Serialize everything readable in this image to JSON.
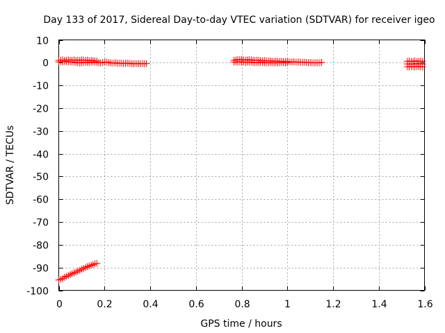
{
  "chart_data": {
    "type": "scatter",
    "title": "Day 133 of 2017, Sidereal Day-to-day VTEC variation (SDTVAR) for receiver igeo",
    "xlabel": "GPS time / hours",
    "ylabel": "SDTVAR / TECUs",
    "xlim": [
      0,
      1.6
    ],
    "ylim": [
      -100,
      10
    ],
    "xticks": [
      0,
      0.2,
      0.4,
      0.6,
      0.8,
      1,
      1.2,
      1.4,
      1.6
    ],
    "xtick_labels": [
      "0",
      "0.2",
      "0.4",
      "0.6",
      "0.8",
      "1",
      "1.2",
      "1.4",
      "1.6"
    ],
    "yticks": [
      10,
      0,
      -10,
      -20,
      -30,
      -40,
      -50,
      -60,
      -70,
      -80,
      -90,
      -100
    ],
    "ytick_labels": [
      "10",
      "0",
      "-10",
      "-20",
      "-30",
      "-40",
      "-50",
      "-60",
      "-70",
      "-80",
      "-90",
      "-100"
    ],
    "grid": true,
    "marker": "plus",
    "marker_color": "#ff0000",
    "series": [
      {
        "x": [
          0.0,
          0.008,
          0.017,
          0.025,
          0.033,
          0.042,
          0.05,
          0.058,
          0.067,
          0.075,
          0.083,
          0.092,
          0.1,
          0.108,
          0.117,
          0.125,
          0.133,
          0.142,
          0.15,
          0.158,
          0.167,
          0.175,
          0.183,
          0.192,
          0.2,
          0.208,
          0.217,
          0.225,
          0.233,
          0.242,
          0.25,
          0.258,
          0.267,
          0.275,
          0.283,
          0.292,
          0.3,
          0.308,
          0.317,
          0.325,
          0.333,
          0.342,
          0.35,
          0.358,
          0.367,
          0.375,
          0.383,
          0.0,
          0.008,
          0.017,
          0.025,
          0.033,
          0.042,
          0.05,
          0.058,
          0.067,
          0.075,
          0.083,
          0.092,
          0.1,
          0.108,
          0.117,
          0.125,
          0.133,
          0.142,
          0.15,
          0.158,
          0.167,
          0.0,
          0.008,
          0.017,
          0.025,
          0.033,
          0.042,
          0.05,
          0.058,
          0.067,
          0.075,
          0.083,
          0.092,
          0.1,
          0.108,
          0.117,
          0.125,
          0.133,
          0.142,
          0.15,
          0.158,
          0.167,
          0.767,
          0.775,
          0.783,
          0.792,
          0.8,
          0.808,
          0.817,
          0.825,
          0.833,
          0.842,
          0.85,
          0.858,
          0.867,
          0.875,
          0.883,
          0.892,
          0.9,
          0.908,
          0.917,
          0.925,
          0.933,
          0.942,
          0.95,
          0.958,
          0.967,
          0.975,
          0.983,
          0.992,
          1.0,
          1.008,
          1.017,
          1.025,
          1.033,
          1.042,
          1.05,
          1.058,
          1.067,
          1.075,
          1.083,
          1.092,
          1.1,
          1.108,
          1.117,
          1.125,
          1.133,
          1.142,
          1.15,
          0.767,
          0.775,
          0.783,
          0.792,
          0.8,
          0.808,
          0.817,
          0.825,
          0.833,
          0.842,
          0.85,
          0.858,
          0.867,
          0.875,
          0.883,
          0.892,
          0.9,
          0.908,
          0.917,
          0.925,
          0.933,
          0.942,
          0.95,
          0.958,
          0.967,
          0.975,
          0.983,
          0.992,
          1.0,
          1.525,
          1.533,
          1.542,
          1.55,
          1.558,
          1.567,
          1.575,
          1.583,
          1.592,
          1.525,
          1.533,
          1.542,
          1.55,
          1.558,
          1.567,
          1.575,
          1.583,
          1.592,
          1.525,
          1.533,
          1.542,
          1.55,
          1.558,
          1.567,
          1.575,
          1.583,
          1.592
        ],
        "y": [
          0.3,
          0.4,
          0.4,
          0.5,
          0.4,
          0.3,
          0.4,
          0.3,
          0.2,
          0.1,
          0.0,
          -0.1,
          0.0,
          0.1,
          0.2,
          0.1,
          0.0,
          0.2,
          0.3,
          0.2,
          0.1,
          0.0,
          -0.1,
          0.1,
          0.2,
          0.3,
          0.1,
          0.0,
          -0.2,
          -0.1,
          0.0,
          -0.3,
          -0.2,
          -0.3,
          -0.4,
          -0.3,
          -0.2,
          -0.3,
          -0.4,
          -0.5,
          -0.4,
          -0.5,
          -0.4,
          -0.5,
          -0.4,
          -0.5,
          -0.4,
          1.0,
          1.1,
          1.2,
          1.0,
          1.1,
          1.2,
          1.0,
          1.1,
          1.2,
          1.0,
          1.1,
          1.0,
          1.2,
          1.1,
          1.0,
          1.1,
          0.9,
          1.0,
          0.9,
          0.8,
          0.7,
          -95.5,
          -95.2,
          -94.8,
          -94.3,
          -93.9,
          -93.5,
          -93.1,
          -92.7,
          -92.3,
          -92.0,
          -91.6,
          -91.2,
          -90.8,
          -90.4,
          -90.0,
          -89.6,
          -89.3,
          -89.0,
          -88.7,
          -88.3,
          -88.2,
          1.0,
          1.2,
          1.3,
          1.4,
          1.3,
          1.2,
          1.1,
          1.2,
          1.3,
          1.2,
          1.1,
          1.0,
          1.1,
          1.0,
          0.9,
          0.8,
          0.9,
          0.8,
          0.7,
          0.8,
          0.7,
          0.6,
          0.7,
          0.6,
          0.5,
          0.6,
          0.5,
          0.4,
          0.5,
          0.4,
          0.3,
          0.4,
          0.3,
          0.2,
          0.3,
          0.2,
          0.1,
          0.2,
          0.1,
          0.0,
          0.1,
          0.0,
          -0.1,
          0.0,
          -0.1,
          0.0,
          0.1,
          0.2,
          0.3,
          0.2,
          0.4,
          0.3,
          0.2,
          0.1,
          0.2,
          0.3,
          0.2,
          0.1,
          0.0,
          0.1,
          0.0,
          0.2,
          0.1,
          0.0,
          -0.1,
          0.0,
          0.1,
          0.0,
          -0.1,
          0.0,
          -0.1,
          0.0,
          0.1,
          0.0,
          -0.1,
          0.0,
          0.6,
          0.7,
          0.5,
          0.6,
          0.8,
          0.6,
          0.5,
          0.7,
          0.6,
          -0.6,
          -0.5,
          -0.7,
          -0.6,
          -0.5,
          -0.4,
          -0.6,
          -0.5,
          -0.6,
          -1.8,
          -1.9,
          -1.7,
          -1.8,
          -1.9,
          -1.8,
          -1.7,
          -1.8,
          -1.9
        ]
      }
    ]
  }
}
